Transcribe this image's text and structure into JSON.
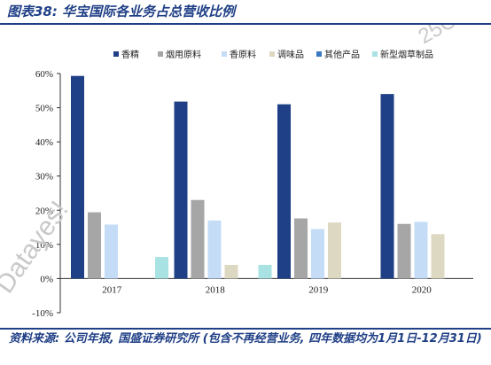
{
  "title": "图表38: 华宝国际各业务占总营收比例",
  "source": "资料来源: 公司年报, 国盛证券研究所 (包含不再经营业务, 四年数据均为1月1日-12月31日)",
  "watermarks": [
    "Datayes!",
    "25C14"
  ],
  "chart_data": {
    "type": "bar",
    "categories": [
      "2017",
      "2018",
      "2019",
      "2020"
    ],
    "ylim": [
      -10,
      60
    ],
    "yticks": [
      -10,
      0,
      10,
      20,
      30,
      40,
      50,
      60
    ],
    "ytick_labels": [
      "-10%",
      "0%",
      "10%",
      "20%",
      "30%",
      "40%",
      "50%",
      "60%"
    ],
    "grid": false,
    "legend_position": "top",
    "series": [
      {
        "name": "香精",
        "color": "#1f3f86",
        "values": [
          59.3,
          51.8,
          51.0,
          54.0
        ]
      },
      {
        "name": "烟用原料",
        "color": "#a6a6a6",
        "values": [
          19.4,
          23.0,
          17.6,
          16.0
        ]
      },
      {
        "name": "香原料",
        "color": "#c5dcf6",
        "values": [
          15.8,
          17.0,
          14.5,
          16.6
        ]
      },
      {
        "name": "调味品",
        "color": "#dcd8c2",
        "values": [
          0,
          4.0,
          16.4,
          13.0
        ]
      },
      {
        "name": "其他产品",
        "color": "#3a78c0",
        "values": [
          0,
          0,
          0,
          0
        ]
      },
      {
        "name": "新型烟草制品",
        "color": "#a8e2e2",
        "values": [
          6.3,
          4.0,
          0,
          0
        ]
      }
    ]
  }
}
